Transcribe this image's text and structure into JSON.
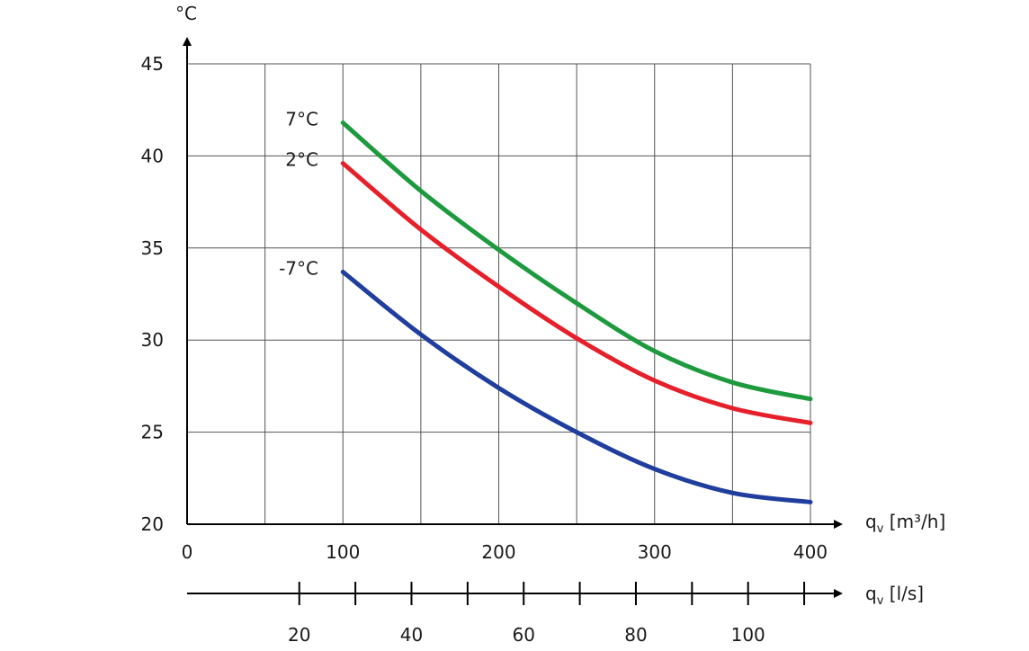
{
  "chart_data": {
    "type": "line",
    "title": "",
    "ylabel": "°C",
    "xlabel": "q_v [m³/h]",
    "xlabel_parts": {
      "q": "q",
      "sub": "v",
      "unit": " [m³/h]"
    },
    "x2label_parts": {
      "q": "q",
      "sub": "v",
      "unit": " [l/s]"
    },
    "xlim": [
      0,
      400
    ],
    "ylim": [
      20,
      45
    ],
    "grid": true,
    "x_ticks": [
      0,
      100,
      200,
      300,
      400
    ],
    "y_ticks": [
      20,
      25,
      30,
      35,
      40,
      45
    ],
    "x2_ticks": [
      20,
      40,
      60,
      80,
      100
    ],
    "x2_minor_ticks": [
      20,
      30,
      40,
      50,
      60,
      70,
      80,
      90,
      100,
      110
    ],
    "x2_m3h_per_ls": 3.6,
    "series": [
      {
        "name": "7°C",
        "color": "#1d9a3e",
        "x": [
          100,
          150,
          200,
          250,
          300,
          350,
          400
        ],
        "y": [
          41.8,
          38.1,
          34.9,
          32.0,
          29.4,
          27.7,
          26.8
        ]
      },
      {
        "name": "2°C",
        "color": "#e5202b",
        "x": [
          100,
          150,
          200,
          250,
          300,
          350,
          400
        ],
        "y": [
          39.6,
          36.0,
          32.9,
          30.1,
          27.8,
          26.3,
          25.5
        ]
      },
      {
        "name": "-7°C",
        "color": "#1f3e9e",
        "x": [
          100,
          150,
          200,
          250,
          300,
          350,
          400
        ],
        "y": [
          33.7,
          30.3,
          27.4,
          25.0,
          23.0,
          21.7,
          21.2
        ]
      }
    ]
  }
}
